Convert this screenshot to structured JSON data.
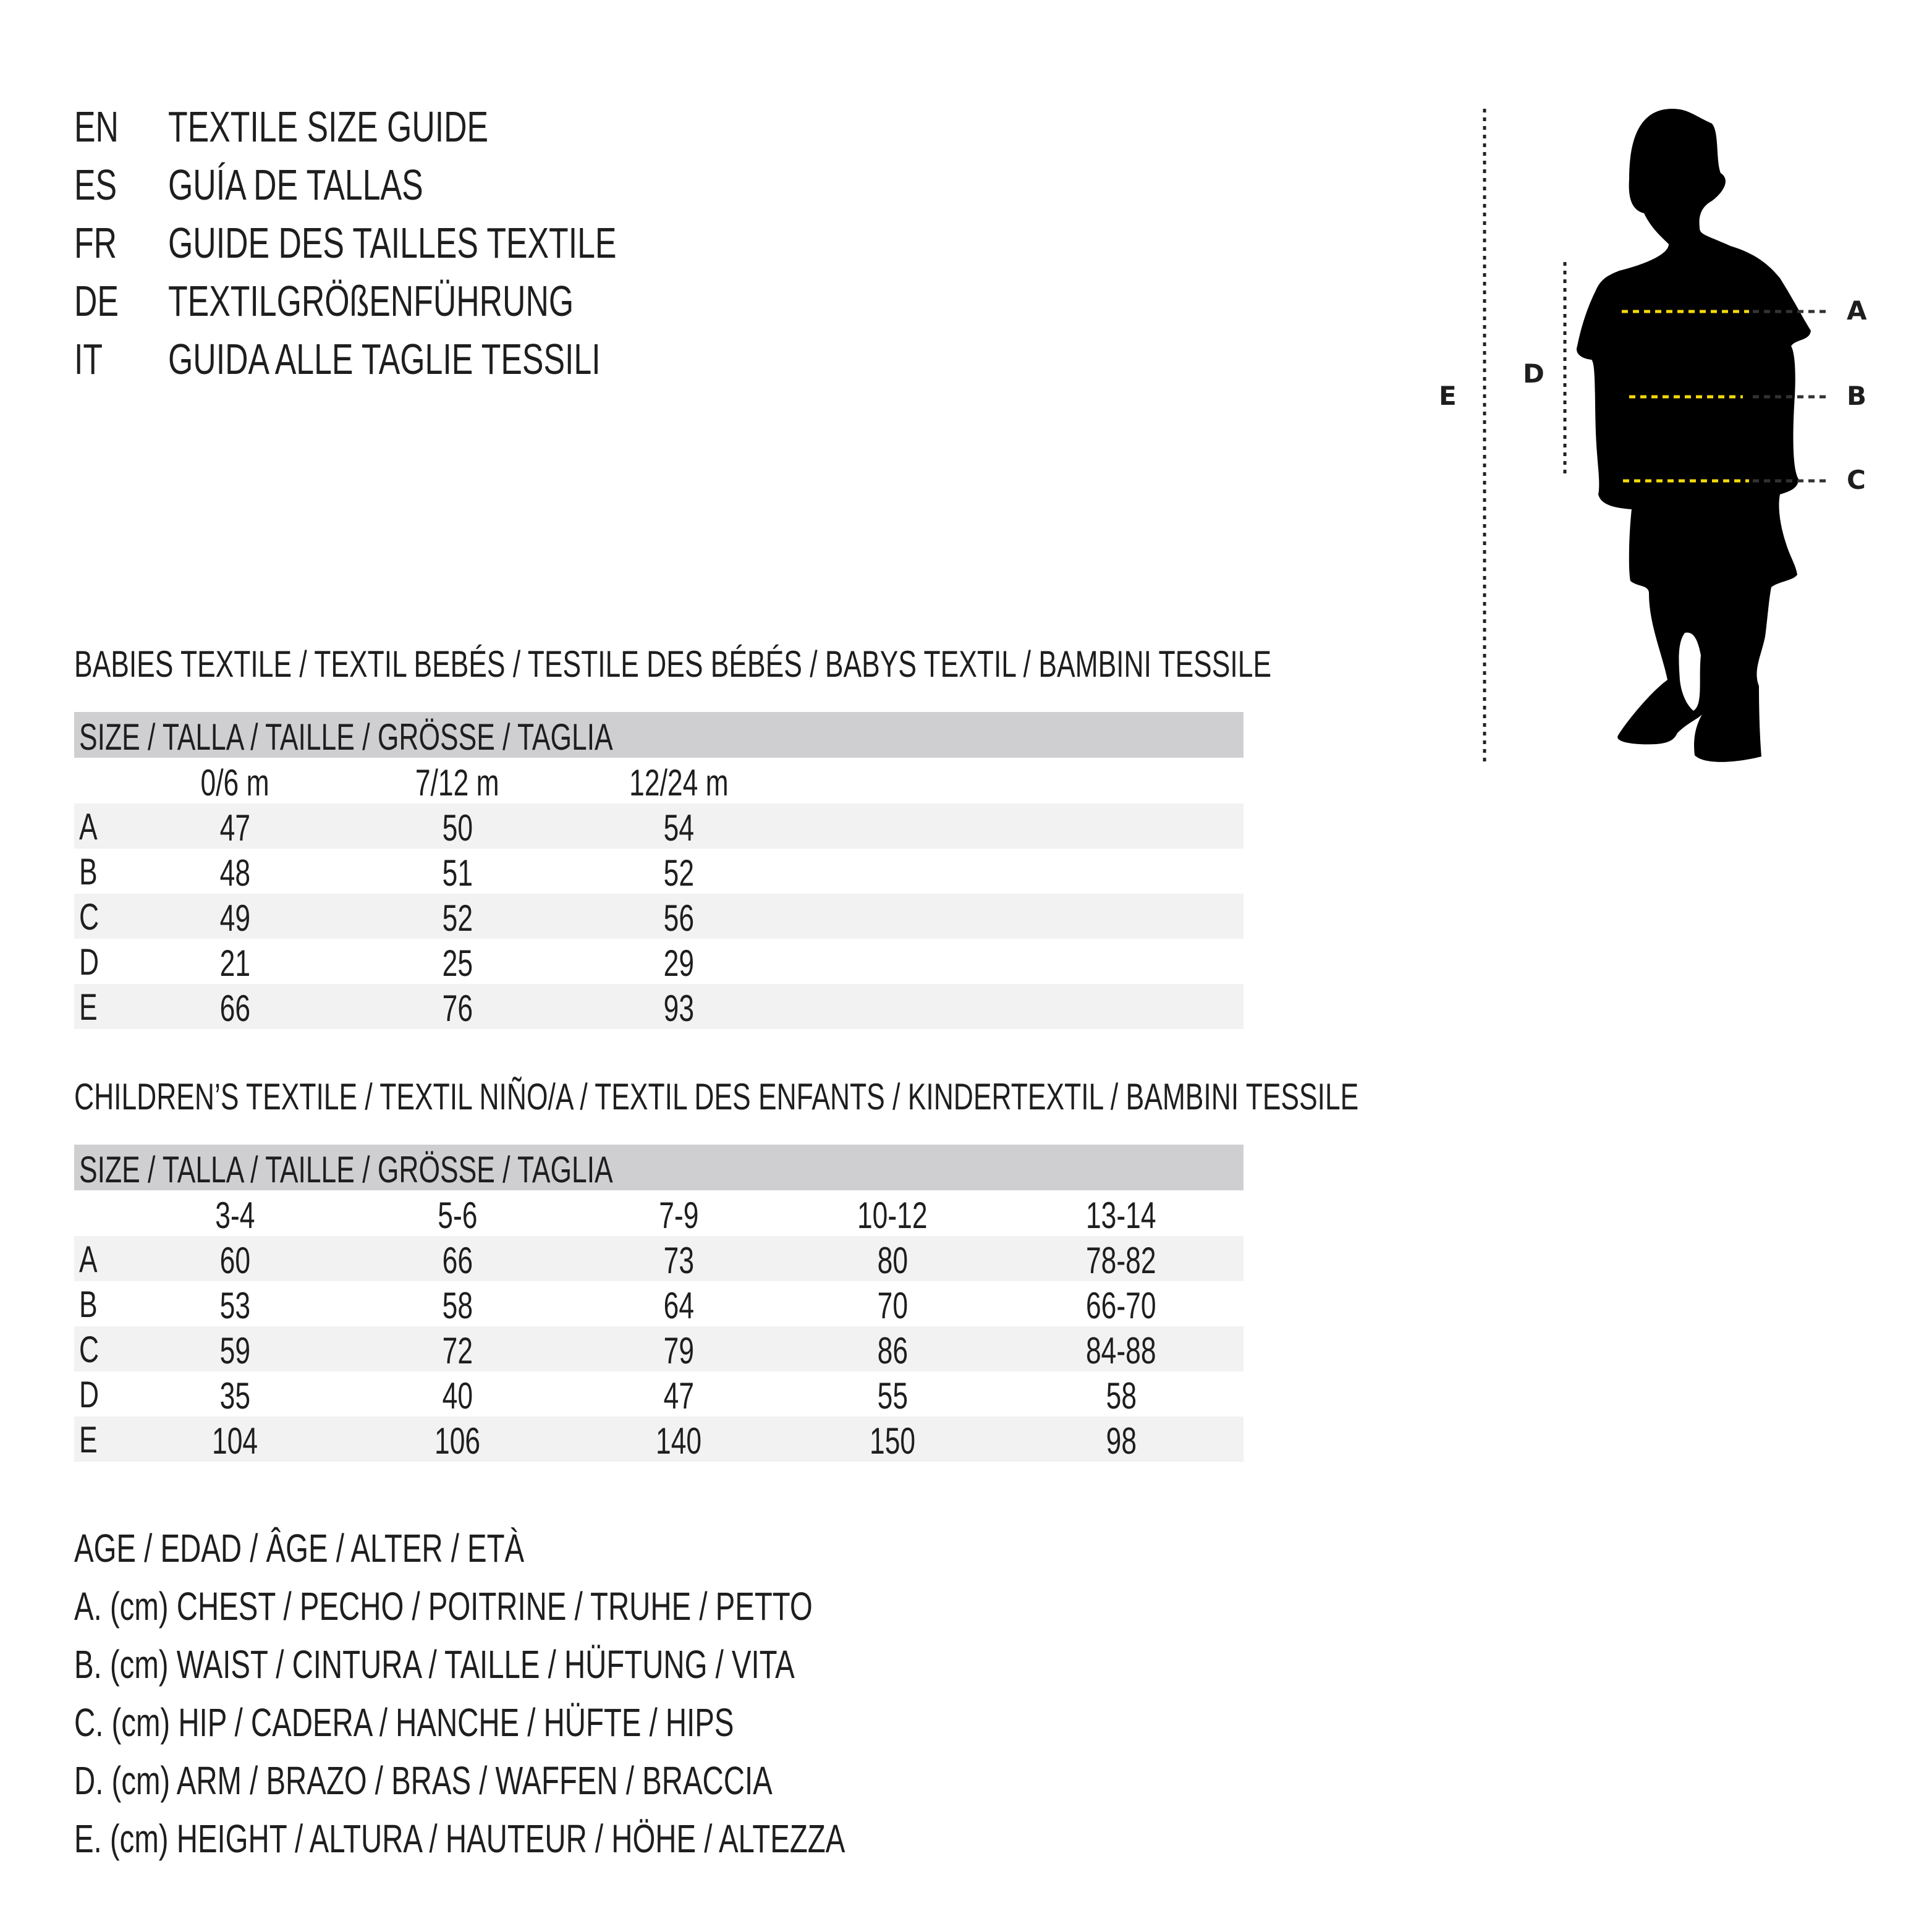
{
  "title_block": [
    {
      "lang": "EN",
      "text": "TEXTILE SIZE GUIDE"
    },
    {
      "lang": "ES",
      "text": "GUÍA DE TALLAS"
    },
    {
      "lang": "FR",
      "text": "GUIDE DES TAILLES TEXTILE"
    },
    {
      "lang": "DE",
      "text": "TEXTILGRÖßENFÜHRUNG"
    },
    {
      "lang": "IT",
      "text": "GUIDA ALLE TAGLIE TESSILI"
    }
  ],
  "figure": {
    "labels": {
      "A": "A",
      "B": "B",
      "C": "C",
      "D": "D",
      "E": "E"
    },
    "accent_color": "#f5d90a",
    "icon": "child-silhouette-icon"
  },
  "babies": {
    "heading": "BABIES TEXTILE / TEXTIL BEBÉS / TESTILE DES BÉBÉS / BABYS TEXTIL / BAMBINI TESSILE",
    "size_header": "SIZE / TALLA / TAILLE / GRÖSSE / TAGLIA",
    "columns": [
      "0/6 m",
      "7/12 m",
      "12/24 m"
    ],
    "rows": [
      {
        "label": "A",
        "values": [
          "47",
          "50",
          "54"
        ]
      },
      {
        "label": "B",
        "values": [
          "48",
          "51",
          "52"
        ]
      },
      {
        "label": "C",
        "values": [
          "49",
          "52",
          "56"
        ]
      },
      {
        "label": "D",
        "values": [
          "21",
          "25",
          "29"
        ]
      },
      {
        "label": "E",
        "values": [
          "66",
          "76",
          "93"
        ]
      }
    ]
  },
  "children": {
    "heading": "CHILDREN’S TEXTILE / TEXTIL NIÑO/A / TEXTIL DES ENFANTS / KINDERTEXTIL / BAMBINI TESSILE",
    "size_header": "SIZE / TALLA / TAILLE / GRÖSSE / TAGLIA",
    "columns": [
      "3-4",
      "5-6",
      "7-9",
      "10-12",
      "13-14"
    ],
    "rows": [
      {
        "label": "A",
        "values": [
          "60",
          "66",
          "73",
          "80",
          "78-82"
        ]
      },
      {
        "label": "B",
        "values": [
          "53",
          "58",
          "64",
          "70",
          "66-70"
        ]
      },
      {
        "label": "C",
        "values": [
          "59",
          "72",
          "79",
          "86",
          "84-88"
        ]
      },
      {
        "label": "D",
        "values": [
          "35",
          "40",
          "47",
          "55",
          "58"
        ]
      },
      {
        "label": "E",
        "values": [
          "104",
          "106",
          "140",
          "150",
          "98"
        ]
      }
    ]
  },
  "legend": [
    "AGE / EDAD / ÂGE / ALTER / ETÀ",
    "A. (cm) CHEST / PECHO / POITRINE / TRUHE / PETTO",
    "B. (cm) WAIST / CINTURA / TAILLE / HÜFTUNG / VITA",
    "C. (cm) HIP / CADERA / HANCHE / HÜFTE / HIPS",
    "D. (cm) ARM / BRAZO / BRAS / WAFFEN / BRACCIA",
    "E. (cm) HEIGHT / ALTURA / HAUTEUR / HÖHE / ALTEZZA"
  ]
}
